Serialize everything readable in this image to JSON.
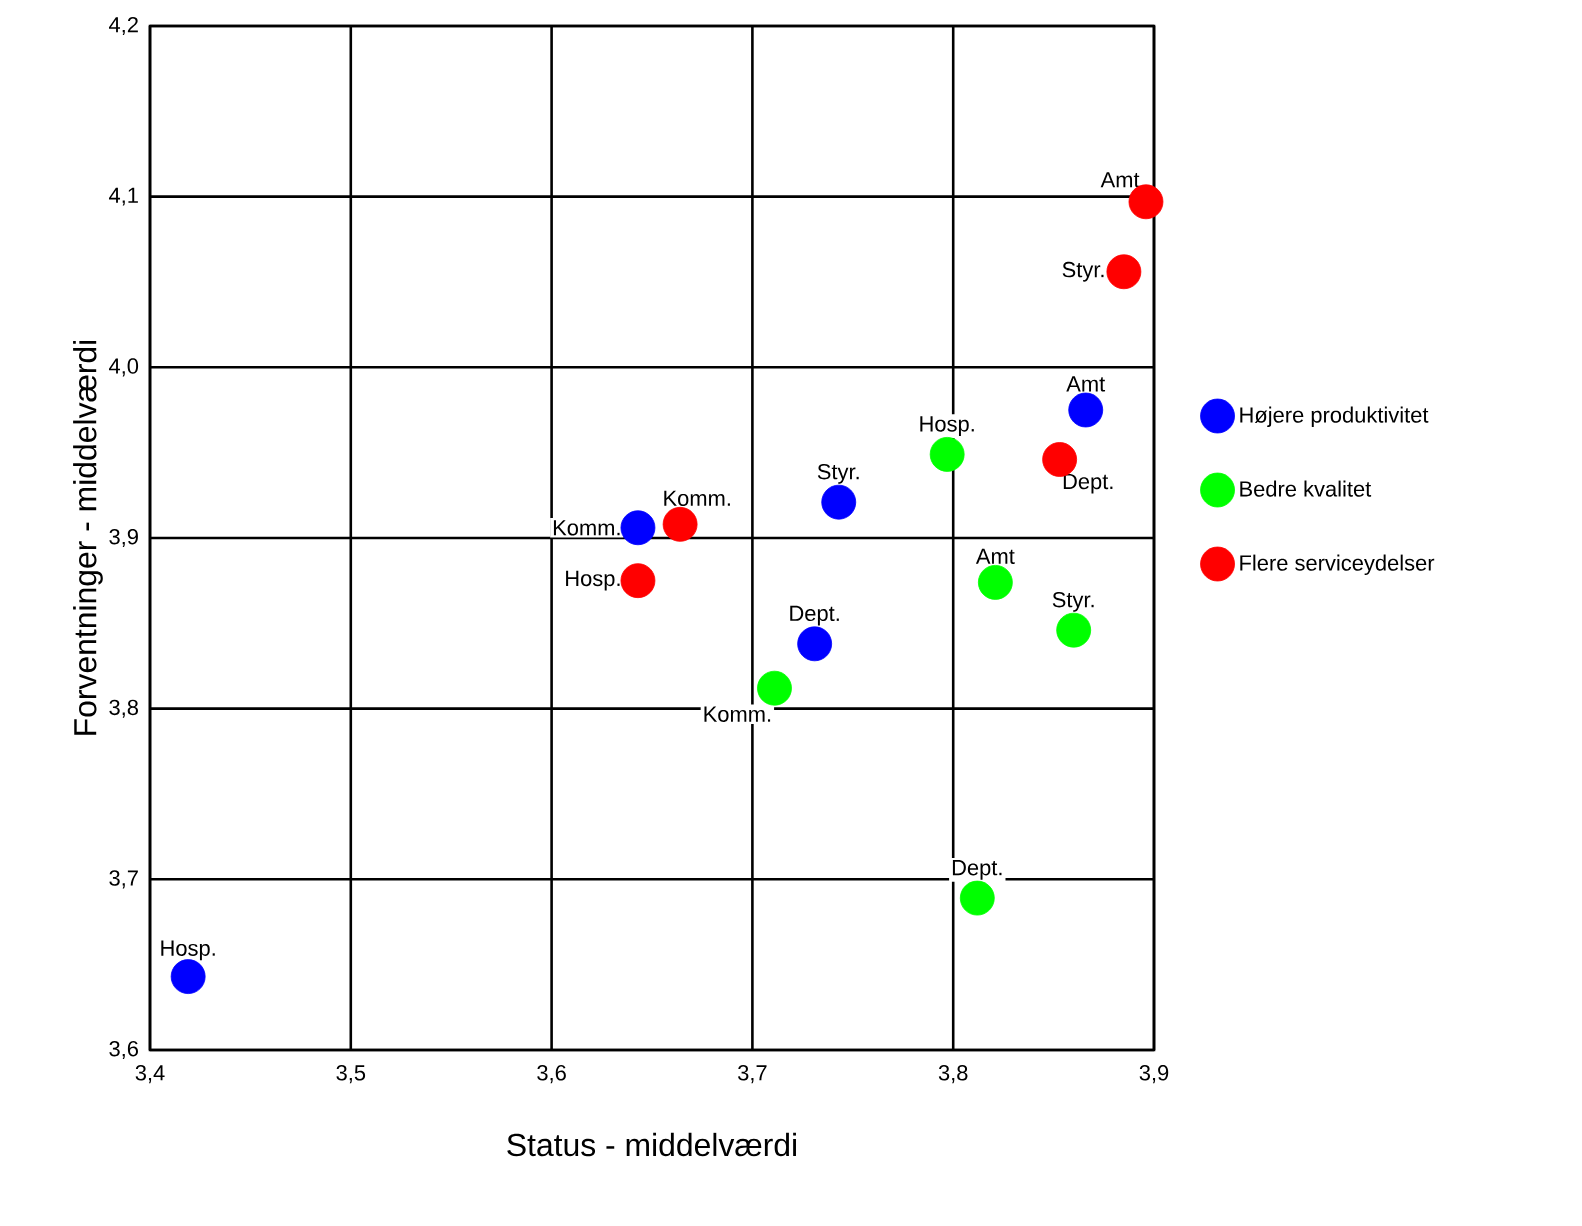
{
  "chart_data": {
    "type": "scatter",
    "xlabel": "Status - middelværdi",
    "ylabel": "Forventninger - middelværdi",
    "xlim": [
      3.4,
      3.9
    ],
    "ylim": [
      3.6,
      4.2
    ],
    "xticks": [
      {
        "value": 3.4,
        "label": "3,4"
      },
      {
        "value": 3.5,
        "label": "3,5"
      },
      {
        "value": 3.6,
        "label": "3,6"
      },
      {
        "value": 3.7,
        "label": "3,7"
      },
      {
        "value": 3.8,
        "label": "3,8"
      },
      {
        "value": 3.9,
        "label": "3,9"
      }
    ],
    "yticks": [
      {
        "value": 3.6,
        "label": "3,6"
      },
      {
        "value": 3.7,
        "label": "3,7"
      },
      {
        "value": 3.8,
        "label": "3,8"
      },
      {
        "value": 3.9,
        "label": "3,9"
      },
      {
        "value": 4.0,
        "label": "4,0"
      },
      {
        "value": 4.1,
        "label": "4,1"
      },
      {
        "value": 4.2,
        "label": "4,2"
      }
    ],
    "grid": true,
    "legend": "right",
    "marker": "circle",
    "series": [
      {
        "name": "Højere produktivitet",
        "color": "#0000ff",
        "x": [
          3.419,
          3.643,
          3.743,
          3.731,
          3.866
        ],
        "values": [
          3.643,
          3.906,
          3.921,
          3.838,
          3.975
        ]
      },
      {
        "name": "Bedre kvalitet",
        "color": "#00ff00",
        "x": [
          3.711,
          3.797,
          3.821,
          3.86,
          3.812
        ],
        "values": [
          3.812,
          3.949,
          3.874,
          3.846,
          3.689
        ]
      },
      {
        "name": "Flere serviceydelser",
        "color": "#ff0000",
        "x": [
          3.664,
          3.643,
          3.853,
          3.885,
          3.896
        ],
        "values": [
          3.908,
          3.875,
          3.946,
          4.056,
          4.097
        ]
      }
    ],
    "annotations": [
      {
        "text": "Hosp.",
        "x": 3.419,
        "y": 3.643
      },
      {
        "text": "Komm.",
        "x": 3.643,
        "y": 3.906
      },
      {
        "text": "Styr.",
        "x": 3.743,
        "y": 3.921
      },
      {
        "text": "Dept.",
        "x": 3.731,
        "y": 3.838
      },
      {
        "text": "Amt",
        "x": 3.866,
        "y": 3.975
      },
      {
        "text": "Komm.",
        "x": 3.711,
        "y": 3.812
      },
      {
        "text": "Hosp.",
        "x": 3.797,
        "y": 3.949
      },
      {
        "text": "Amt",
        "x": 3.821,
        "y": 3.874
      },
      {
        "text": "Styr.",
        "x": 3.86,
        "y": 3.846
      },
      {
        "text": "Dept.",
        "x": 3.812,
        "y": 3.689
      },
      {
        "text": "Komm.",
        "x": 3.664,
        "y": 3.908
      },
      {
        "text": "Hosp.",
        "x": 3.643,
        "y": 3.875
      },
      {
        "text": "Dept.",
        "x": 3.853,
        "y": 3.946
      },
      {
        "text": "Styr.",
        "x": 3.885,
        "y": 4.056
      },
      {
        "text": "Amt",
        "x": 3.896,
        "y": 4.097
      }
    ]
  }
}
